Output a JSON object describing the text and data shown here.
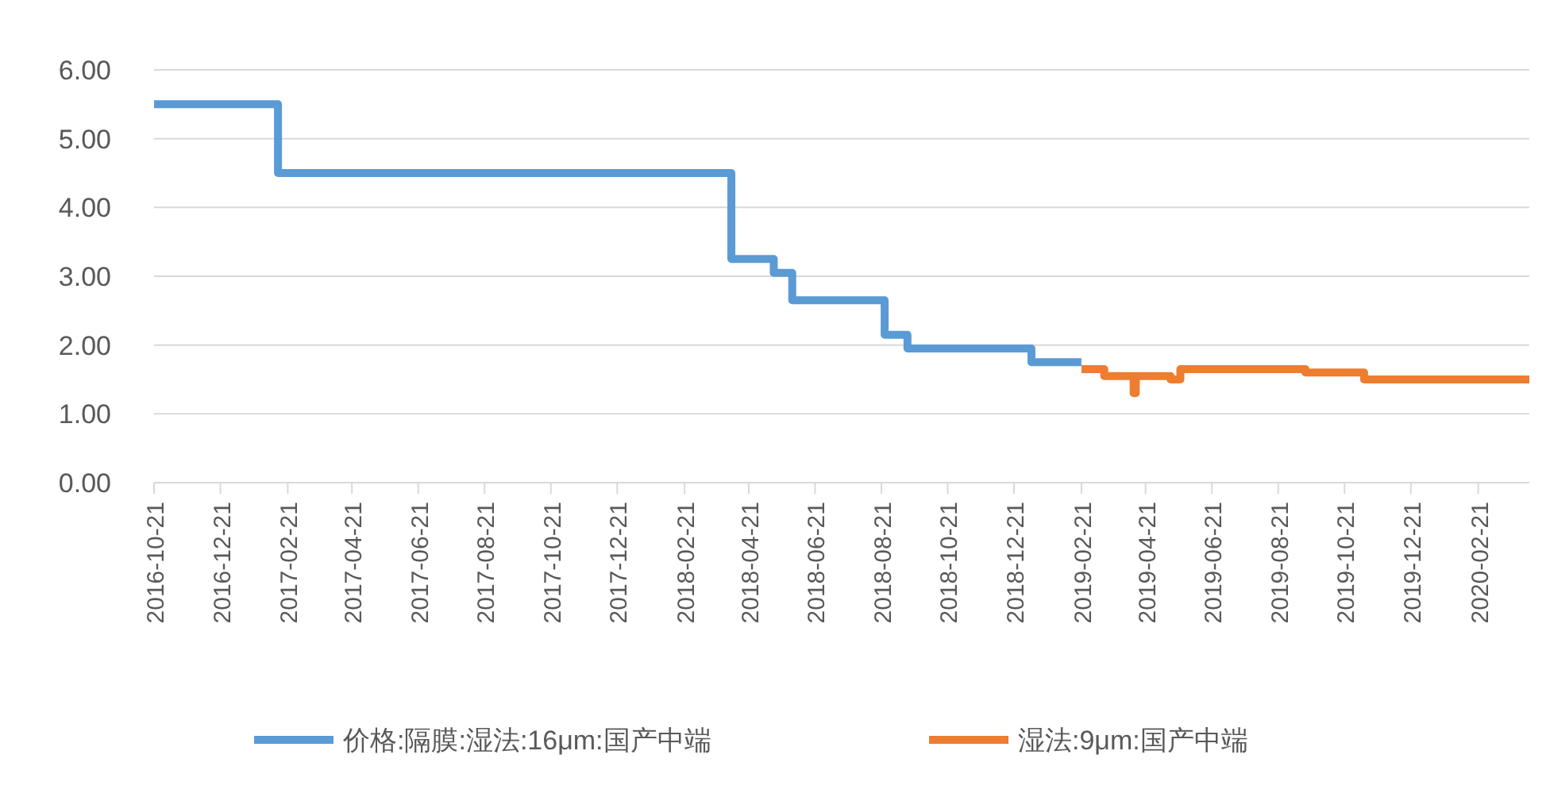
{
  "chart_data": {
    "type": "step",
    "x": [
      "2016-10-21",
      "2017-02-12",
      "2018-04-05",
      "2018-05-14",
      "2018-05-31",
      "2018-08-24",
      "2018-09-14",
      "2019-01-06",
      "2019-02-21"
    ],
    "series": [
      {
        "name": "价格:隔膜:湿法:16μm:国产中端",
        "color": "#5b9bd5",
        "values": [
          5.5,
          4.5,
          3.25,
          3.05,
          2.65,
          2.15,
          1.95,
          1.75,
          1.75
        ]
      },
      {
        "name": "湿法:9μm:国产中端",
        "color": "#ed7d31",
        "x": [
          "2019-02-21",
          "2019-03-14",
          "2019-04-10",
          "2019-04-12",
          "2019-05-14",
          "2019-05-23",
          "2019-09-15",
          "2019-11-08",
          "2020-04-08"
        ],
        "values": [
          1.65,
          1.55,
          1.3,
          1.55,
          1.5,
          1.65,
          1.6,
          1.5,
          1.5
        ]
      }
    ],
    "xlim": [
      "2016-10-21",
      "2020-04-08"
    ],
    "xticks": [
      {
        "value": "2016-10-21",
        "label": "2016-10-21"
      },
      {
        "value": "2016-12-21",
        "label": "2016-12-21"
      },
      {
        "value": "2017-02-21",
        "label": "2017-02-21"
      },
      {
        "value": "2017-04-21",
        "label": "2017-04-21"
      },
      {
        "value": "2017-06-21",
        "label": "2017-06-21"
      },
      {
        "value": "2017-08-21",
        "label": "2017-08-21"
      },
      {
        "value": "2017-10-21",
        "label": "2017-10-21"
      },
      {
        "value": "2017-12-21",
        "label": "2017-12-21"
      },
      {
        "value": "2018-02-21",
        "label": "2018-02-21"
      },
      {
        "value": "2018-04-21",
        "label": "2018-04-21"
      },
      {
        "value": "2018-06-21",
        "label": "2018-06-21"
      },
      {
        "value": "2018-08-21",
        "label": "2018-08-21"
      },
      {
        "value": "2018-10-21",
        "label": "2018-10-21"
      },
      {
        "value": "2018-12-21",
        "label": "2018-12-21"
      },
      {
        "value": "2019-02-21",
        "label": "2019-02-21"
      },
      {
        "value": "2019-04-21",
        "label": "2019-04-21"
      },
      {
        "value": "2019-06-21",
        "label": "2019-06-21"
      },
      {
        "value": "2019-08-21",
        "label": "2019-08-21"
      },
      {
        "value": "2019-10-21",
        "label": "2019-10-21"
      },
      {
        "value": "2019-12-21",
        "label": "2019-12-21"
      },
      {
        "value": "2020-02-21",
        "label": "2020-02-21"
      }
    ],
    "ylim": [
      0,
      6
    ],
    "yticks": [
      {
        "value": 0,
        "label": "0.00"
      },
      {
        "value": 1,
        "label": "1.00"
      },
      {
        "value": 2,
        "label": "2.00"
      },
      {
        "value": 3,
        "label": "3.00"
      },
      {
        "value": 4,
        "label": "4.00"
      },
      {
        "value": 5,
        "label": "5.00"
      },
      {
        "value": 6,
        "label": "6.00"
      }
    ],
    "grid": "y",
    "legend": "bottom",
    "marker": "none",
    "line_style": "solid"
  }
}
